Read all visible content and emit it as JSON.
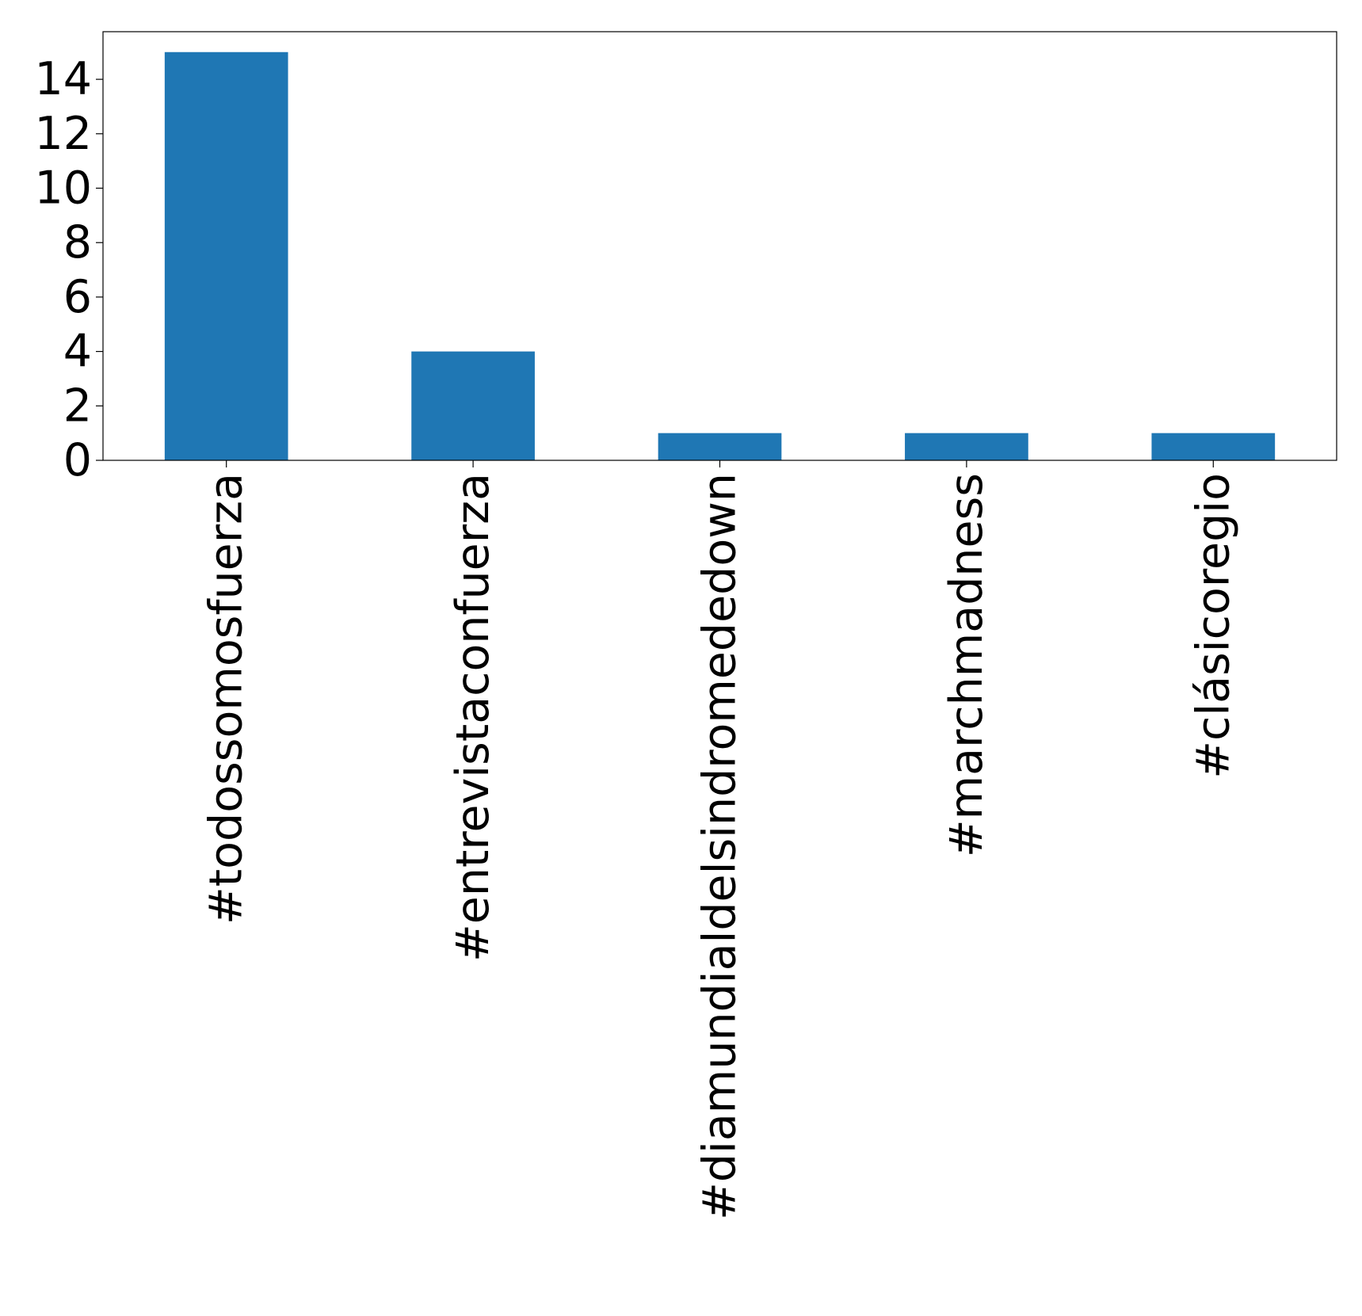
{
  "chart_data": {
    "type": "bar",
    "categories": [
      "#todossomosfuerza",
      "#entrevistaconfuerza",
      "#diamundialdelsindromededown",
      "#marchmadness",
      "#clásicoregio"
    ],
    "values": [
      15,
      4,
      1,
      1,
      1
    ],
    "color": "#1f77b4",
    "ylim": [
      0,
      15.75
    ],
    "yticks": [
      0,
      2,
      4,
      6,
      8,
      10,
      12,
      14
    ],
    "grid": false
  }
}
